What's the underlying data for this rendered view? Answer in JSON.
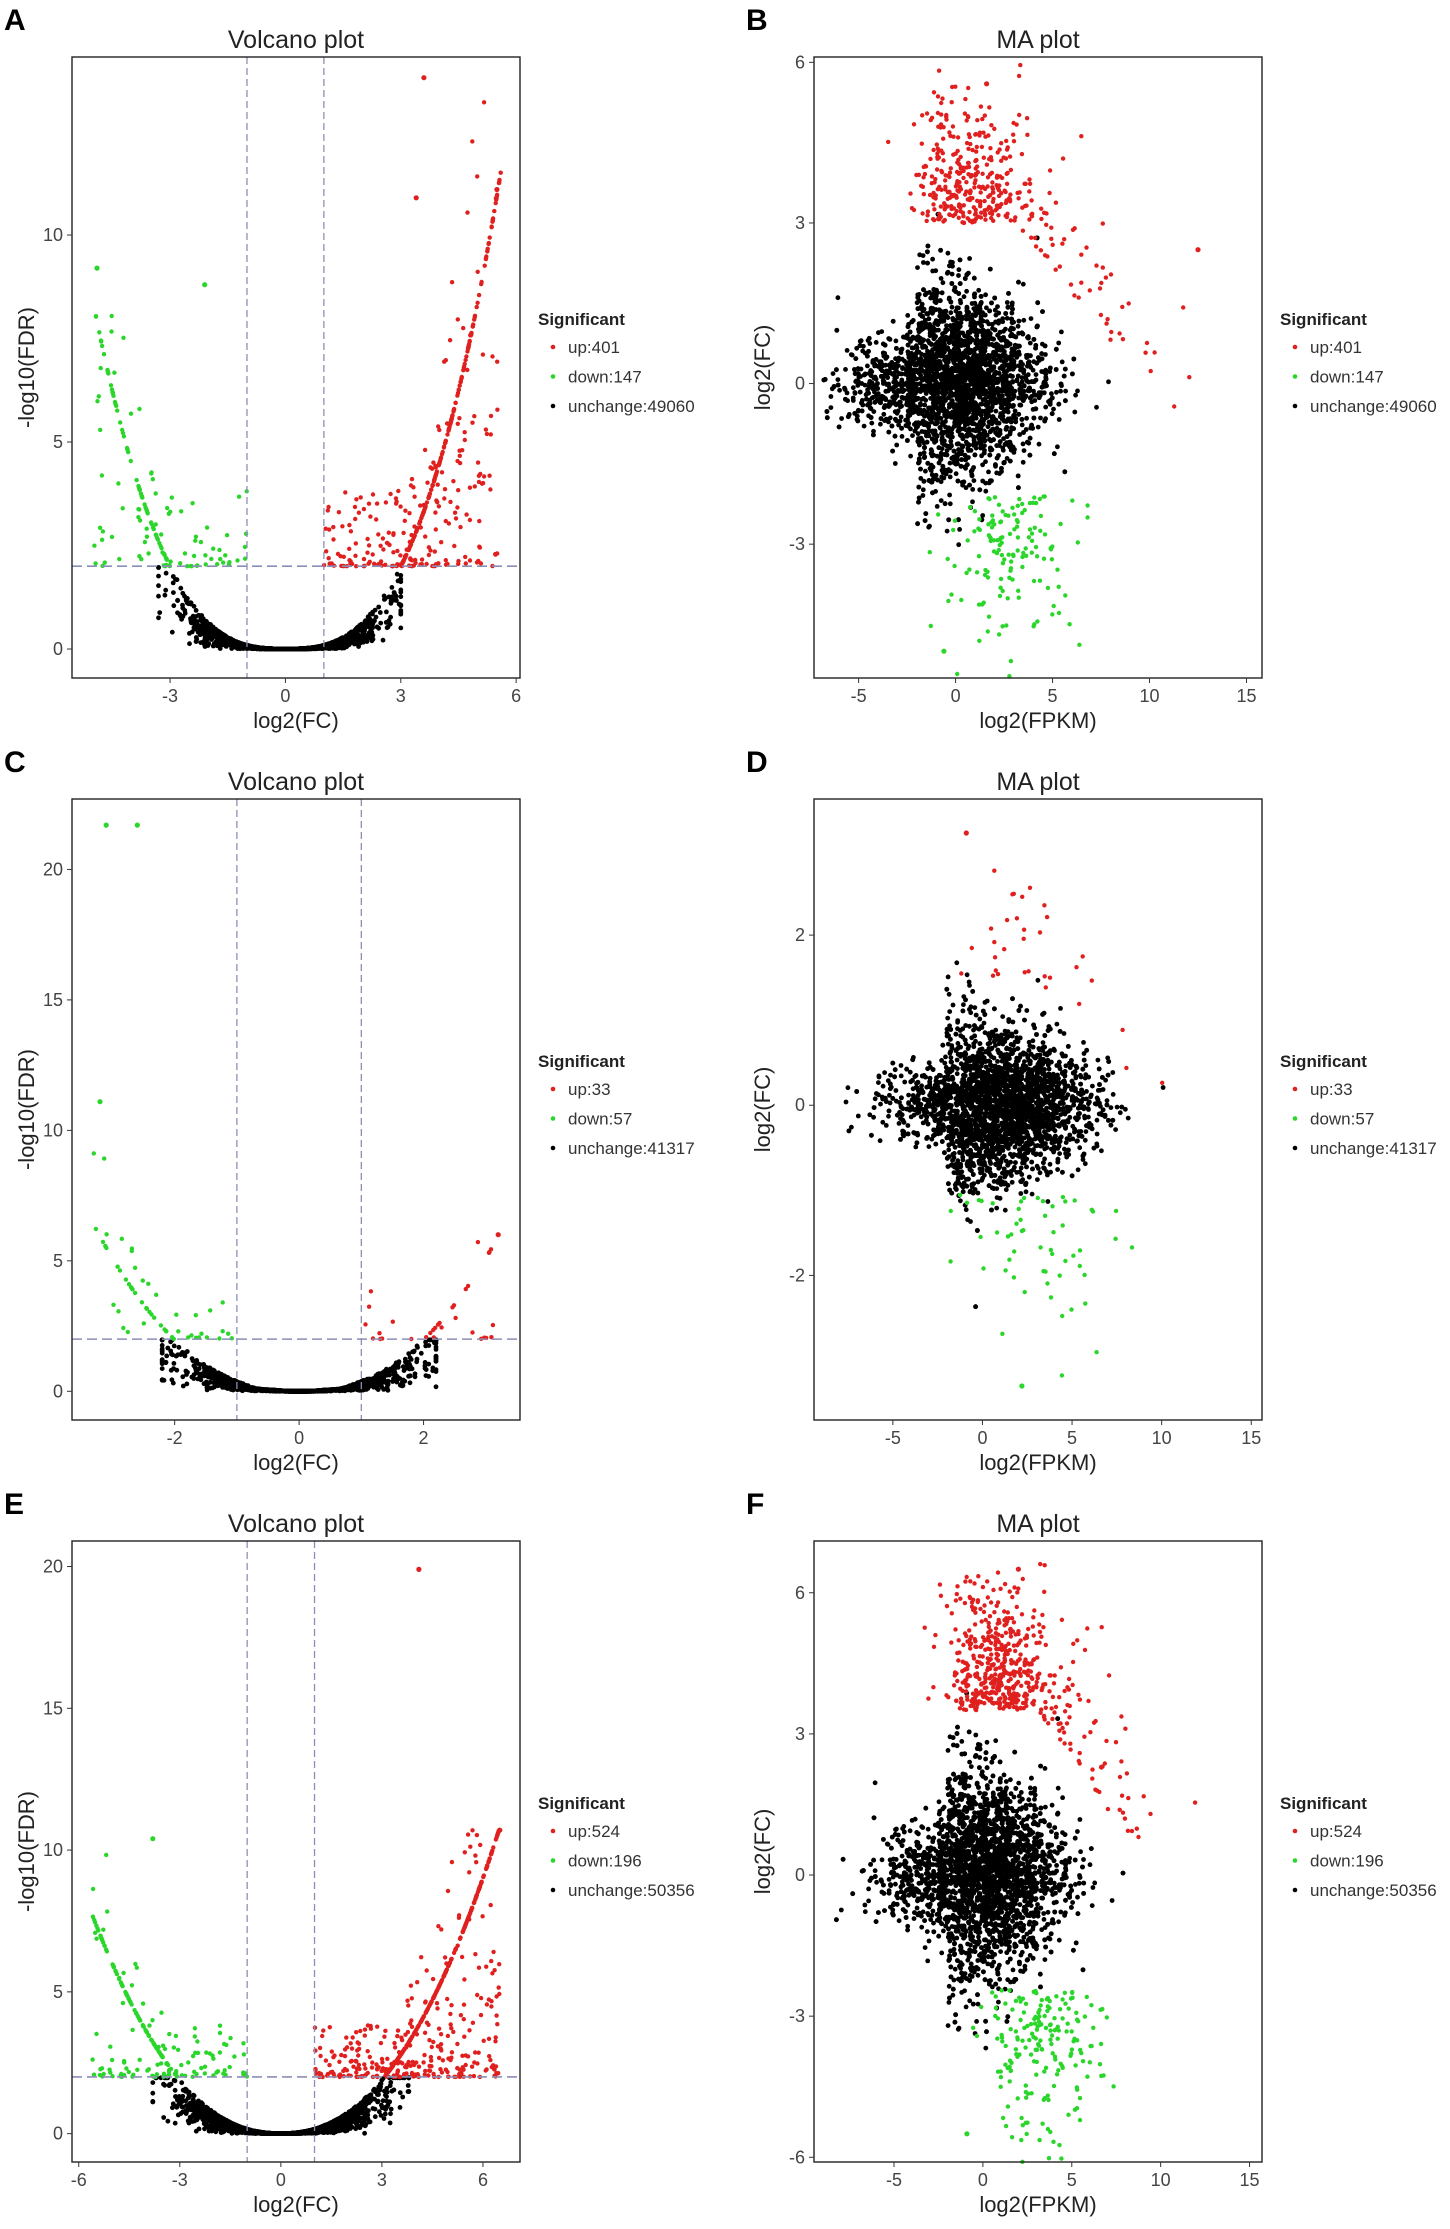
{
  "colors": {
    "up": "#e0201e",
    "down": "#2bd62b",
    "unchange": "#000000",
    "threshold_line": "#8b8fb8"
  },
  "chart_data": [
    {
      "panel": "A",
      "type": "scatter",
      "kind": "volcano",
      "title": "Volcano plot",
      "xlabel": "log2(FC)",
      "ylabel": "-log10(FDR)",
      "xlim": [
        -5.55,
        6.1
      ],
      "ylim": [
        -0.7,
        14.3
      ],
      "xticks": [
        -3,
        0,
        3,
        6
      ],
      "yticks": [
        0,
        5,
        10
      ],
      "thresholds": {
        "fc": [
          -1,
          1
        ],
        "fdr": 2
      },
      "legend": {
        "title": "Significant",
        "position": "right",
        "entries": [
          {
            "label": "up:401",
            "class": "up",
            "count": 401
          },
          {
            "label": "down:147",
            "class": "down",
            "count": 147
          },
          {
            "label": "unchange:49060",
            "class": "unchange",
            "count": 49060
          }
        ]
      },
      "notable_points": [
        {
          "x": 3.6,
          "y": 13.8,
          "class": "up"
        },
        {
          "x": 5.5,
          "y": 11.1,
          "class": "up"
        },
        {
          "x": 3.4,
          "y": 10.9,
          "class": "up"
        },
        {
          "x": -4.9,
          "y": 9.2,
          "class": "down"
        },
        {
          "x": -2.1,
          "y": 8.8,
          "class": "down"
        }
      ]
    },
    {
      "panel": "B",
      "type": "scatter",
      "kind": "ma",
      "title": "MA plot",
      "xlabel": "log2(FPKM)",
      "ylabel": "log2(FC)",
      "xlim": [
        -7.3,
        15.8
      ],
      "ylim": [
        -5.5,
        6.1
      ],
      "xticks": [
        -5,
        0,
        5,
        10,
        15
      ],
      "yticks": [
        -3,
        0,
        3,
        6
      ],
      "legend": {
        "title": "Significant",
        "position": "right",
        "entries": [
          {
            "label": "up:401",
            "class": "up",
            "count": 401
          },
          {
            "label": "down:147",
            "class": "down",
            "count": 147
          },
          {
            "label": "unchange:49060",
            "class": "unchange",
            "count": 49060
          }
        ]
      },
      "notable_points": [
        {
          "x": 1.6,
          "y": 5.6,
          "class": "up"
        },
        {
          "x": 12.5,
          "y": 2.5,
          "class": "up"
        },
        {
          "x": -0.6,
          "y": -5.0,
          "class": "down"
        }
      ]
    },
    {
      "panel": "C",
      "type": "scatter",
      "kind": "volcano",
      "title": "Volcano plot",
      "xlabel": "log2(FC)",
      "ylabel": "-log10(FDR)",
      "xlim": [
        -3.65,
        3.55
      ],
      "ylim": [
        -1.1,
        22.7
      ],
      "xticks": [
        -2,
        0,
        2
      ],
      "yticks": [
        0,
        5,
        10,
        15,
        20
      ],
      "thresholds": {
        "fc": [
          -1,
          1
        ],
        "fdr": 2
      },
      "legend": {
        "title": "Significant",
        "position": "right",
        "entries": [
          {
            "label": "up:33",
            "class": "up",
            "count": 33
          },
          {
            "label": "down:57",
            "class": "down",
            "count": 57
          },
          {
            "label": "unchange:41317",
            "class": "unchange",
            "count": 41317
          }
        ]
      },
      "notable_points": [
        {
          "x": -3.1,
          "y": 21.7,
          "class": "down"
        },
        {
          "x": -2.6,
          "y": 21.7,
          "class": "down"
        },
        {
          "x": -3.2,
          "y": 11.1,
          "class": "down"
        },
        {
          "x": 3.2,
          "y": 6.0,
          "class": "up"
        }
      ]
    },
    {
      "panel": "D",
      "type": "scatter",
      "kind": "ma",
      "title": "MA plot",
      "xlabel": "log2(FPKM)",
      "ylabel": "log2(FC)",
      "xlim": [
        -9.4,
        15.6
      ],
      "ylim": [
        -3.7,
        3.6
      ],
      "xticks": [
        -5,
        0,
        5,
        10,
        15
      ],
      "yticks": [
        -2,
        0,
        2
      ],
      "legend": {
        "title": "Significant",
        "position": "right",
        "entries": [
          {
            "label": "up:33",
            "class": "up",
            "count": 33
          },
          {
            "label": "down:57",
            "class": "down",
            "count": 57
          },
          {
            "label": "unchange:41317",
            "class": "unchange",
            "count": 41317
          }
        ]
      },
      "notable_points": [
        {
          "x": -0.9,
          "y": 3.2,
          "class": "up"
        },
        {
          "x": 2.2,
          "y": -3.3,
          "class": "down"
        }
      ]
    },
    {
      "panel": "E",
      "type": "scatter",
      "kind": "volcano",
      "title": "Volcano plot",
      "xlabel": "log2(FC)",
      "ylabel": "-log10(FDR)",
      "xlim": [
        -6.2,
        7.1
      ],
      "ylim": [
        -1.0,
        20.9
      ],
      "xticks": [
        -6,
        -3,
        0,
        3,
        6
      ],
      "yticks": [
        0,
        5,
        10,
        15,
        20
      ],
      "thresholds": {
        "fc": [
          -1,
          1
        ],
        "fdr": 2
      },
      "legend": {
        "title": "Significant",
        "position": "right",
        "entries": [
          {
            "label": "up:524",
            "class": "up",
            "count": 524
          },
          {
            "label": "down:196",
            "class": "down",
            "count": 196
          },
          {
            "label": "unchange:50356",
            "class": "unchange",
            "count": 50356
          }
        ]
      },
      "notable_points": [
        {
          "x": 4.1,
          "y": 19.9,
          "class": "up"
        },
        {
          "x": 6.5,
          "y": 10.7,
          "class": "up"
        },
        {
          "x": -3.8,
          "y": 10.4,
          "class": "down"
        }
      ]
    },
    {
      "panel": "F",
      "type": "scatter",
      "kind": "ma",
      "title": "MA plot",
      "xlabel": "log2(FPKM)",
      "ylabel": "log2(FC)",
      "xlim": [
        -9.5,
        15.7
      ],
      "ylim": [
        -6.1,
        7.1
      ],
      "xticks": [
        -5,
        0,
        5,
        10,
        15
      ],
      "yticks": [
        -6,
        -3,
        0,
        3,
        6
      ],
      "legend": {
        "title": "Significant",
        "position": "right",
        "entries": [
          {
            "label": "up:524",
            "class": "up",
            "count": 524
          },
          {
            "label": "down:196",
            "class": "down",
            "count": 196
          },
          {
            "label": "unchange:50356",
            "class": "unchange",
            "count": 50356
          }
        ]
      },
      "notable_points": [
        {
          "x": 2.0,
          "y": 6.5,
          "class": "up"
        },
        {
          "x": -0.9,
          "y": -5.5,
          "class": "down"
        }
      ]
    }
  ]
}
